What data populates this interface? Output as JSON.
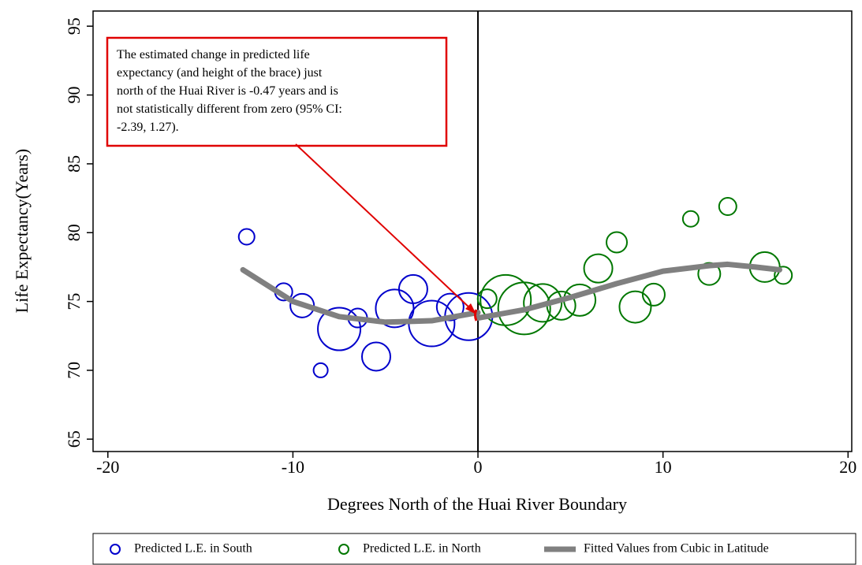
{
  "chart_data": {
    "type": "scatter",
    "x_label": "Degrees North of the Huai River Boundary",
    "y_label": "Life Expectancy(Years)",
    "xlim": [
      -20.8,
      20.2
    ],
    "ylim": [
      64.1,
      96.1
    ],
    "xticks": [
      -20,
      -10,
      0,
      10,
      20
    ],
    "yticks": [
      65,
      70,
      75,
      80,
      85,
      90,
      95
    ],
    "vline": 0,
    "annotation": [
      "The estimated change in predicted life",
      "expectancy (and height of the brace) just",
      "north of the Huai River is -0.47 years and is",
      "not statistically different from zero (95% CI:",
      "-2.39, 1.27)."
    ],
    "series": [
      {
        "name": "Predicted L.E. in South",
        "color": "#0000cc",
        "kind": "bubble",
        "x": [
          -12.5,
          -10.5,
          -9.5,
          -8.5,
          -7.5,
          -6.5,
          -5.5,
          -4.5,
          -3.5,
          -2.5,
          -1.5,
          -0.5
        ],
        "values": [
          79.7,
          75.7,
          74.7,
          70.0,
          73.0,
          73.8,
          71.0,
          74.5,
          75.9,
          73.4,
          74.6,
          73.9
        ],
        "sizes": [
          10,
          11,
          15,
          9,
          27,
          12,
          18,
          24,
          18,
          29,
          17,
          30
        ]
      },
      {
        "name": "Predicted L.E. in North",
        "color": "#007700",
        "kind": "bubble",
        "x": [
          0.5,
          1.5,
          2.5,
          3.5,
          4.5,
          5.5,
          6.5,
          7.5,
          8.5,
          9.5,
          11.5,
          12.5,
          13.5,
          15.5,
          16.5
        ],
        "values": [
          75.2,
          75.1,
          74.5,
          74.9,
          74.7,
          75.1,
          77.4,
          79.3,
          74.6,
          75.5,
          81.0,
          77.0,
          81.9,
          77.5,
          76.9
        ],
        "sizes": [
          12,
          32,
          33,
          24,
          18,
          20,
          18,
          13,
          20,
          14,
          10,
          14,
          11,
          19,
          11
        ]
      },
      {
        "name": "Fitted Values from Cubic in Latitude",
        "color": "#808080",
        "kind": "line",
        "x": [
          -12.7,
          -10,
          -7.5,
          -5,
          -2.5,
          0,
          0,
          0,
          2.5,
          5,
          7.5,
          10,
          12.5,
          13.5,
          15,
          16.3
        ],
        "values": [
          77.3,
          75.0,
          73.9,
          73.5,
          73.6,
          74.2,
          null,
          73.8,
          74.4,
          75.3,
          76.3,
          77.2,
          77.6,
          77.7,
          77.5,
          77.3
        ]
      }
    ]
  }
}
